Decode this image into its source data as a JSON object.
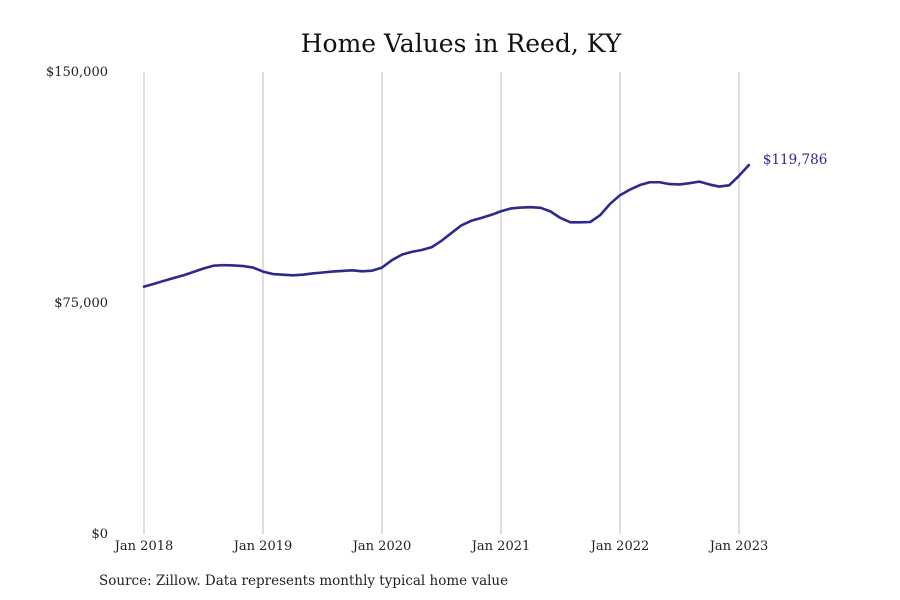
{
  "chart_data": {
    "type": "line",
    "title": "Home Values in Reed, KY",
    "xlabel": "",
    "ylabel": "",
    "ylim": [
      0,
      150000
    ],
    "y_ticks": [
      {
        "value": 0,
        "label": "$0"
      },
      {
        "value": 75000,
        "label": "$75,000"
      },
      {
        "value": 150000,
        "label": "$150,000"
      }
    ],
    "x_ticks": [
      {
        "value": 2018.0,
        "label": "Jan 2018"
      },
      {
        "value": 2019.0,
        "label": "Jan 2019"
      },
      {
        "value": 2020.0,
        "label": "Jan 2020"
      },
      {
        "value": 2021.0,
        "label": "Jan 2021"
      },
      {
        "value": 2022.0,
        "label": "Jan 2022"
      },
      {
        "value": 2023.0,
        "label": "Jan 2023"
      }
    ],
    "grid": {
      "vertical": true,
      "horizontal": false
    },
    "legend": "none",
    "series": [
      {
        "color": "#2e2a8c",
        "end_label": "$119,786",
        "x": [
          2018.0,
          2018.083,
          2018.167,
          2018.25,
          2018.333,
          2018.417,
          2018.5,
          2018.583,
          2018.667,
          2018.75,
          2018.833,
          2018.917,
          2019.0,
          2019.083,
          2019.167,
          2019.25,
          2019.333,
          2019.417,
          2019.5,
          2019.583,
          2019.667,
          2019.75,
          2019.833,
          2019.917,
          2020.0,
          2020.083,
          2020.167,
          2020.25,
          2020.333,
          2020.417,
          2020.5,
          2020.583,
          2020.667,
          2020.75,
          2020.833,
          2020.917,
          2021.0,
          2021.083,
          2021.167,
          2021.25,
          2021.333,
          2021.417,
          2021.5,
          2021.583,
          2021.667,
          2021.75,
          2021.833,
          2021.917,
          2022.0,
          2022.083,
          2022.167,
          2022.25,
          2022.333,
          2022.417,
          2022.5,
          2022.583,
          2022.667,
          2022.75,
          2022.833,
          2022.917,
          2023.0,
          2023.083,
          2023.167,
          2023.25,
          2023.333
        ],
        "y": [
          80300,
          81200,
          82200,
          83100,
          84000,
          85100,
          86200,
          87100,
          87300,
          87200,
          87000,
          86500,
          85200,
          84400,
          84200,
          84000,
          84200,
          84600,
          84900,
          85200,
          85400,
          85600,
          85300,
          85500,
          86500,
          88900,
          90700,
          91600,
          92200,
          93100,
          95200,
          97700,
          100200,
          101700,
          102600,
          103600,
          104800,
          105700,
          106000,
          106100,
          105900,
          104700,
          102600,
          101200,
          101200,
          101300,
          103500,
          107200,
          110000,
          111800,
          113300,
          114200,
          114200,
          113600,
          113500,
          113900,
          114400,
          113500,
          112800,
          113200,
          116300,
          119786,
          119786,
          119786,
          119786
        ]
      }
    ]
  },
  "footer": {
    "source": "Source: Zillow. Data represents monthly typical home value"
  }
}
